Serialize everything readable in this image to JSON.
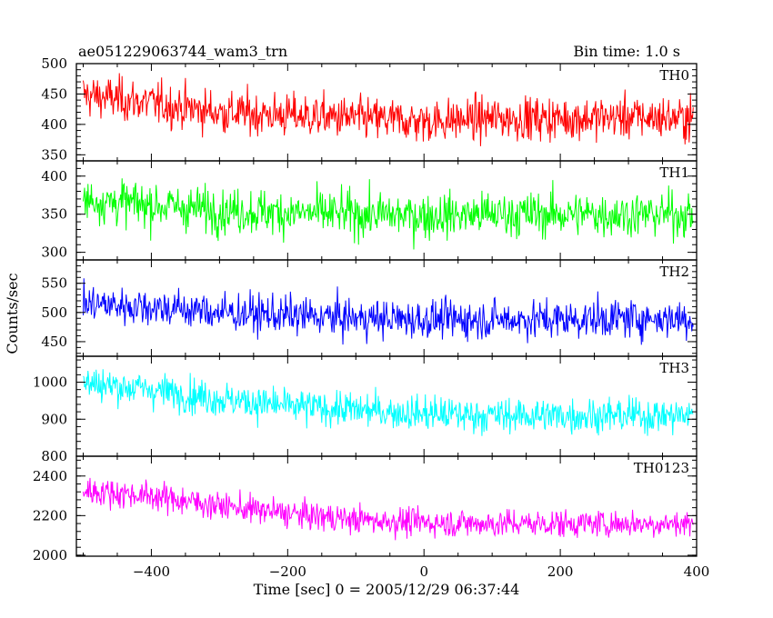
{
  "chart_data": {
    "type": "line",
    "title": "ae051229063744_wam3_trn",
    "bin_time_label": "Bin time: 1.0 s",
    "xlabel": "Time [sec] 0 = 2005/12/29 06:37:44",
    "ylabel": "Counts/sec",
    "x_range": [
      -510,
      400
    ],
    "x_ticks": [
      -400,
      -200,
      0,
      200,
      400
    ],
    "grid": false,
    "panels": [
      {
        "name": "TH0",
        "color": "#ff0000",
        "ylim": [
          340,
          500
        ],
        "yticks": [
          350,
          400,
          450,
          500
        ],
        "trend": [
          [
            -510,
            450
          ],
          [
            -400,
            435
          ],
          [
            -300,
            420
          ],
          [
            -200,
            415
          ],
          [
            -100,
            410
          ],
          [
            0,
            405
          ],
          [
            100,
            410
          ],
          [
            200,
            410
          ],
          [
            300,
            412
          ],
          [
            400,
            410
          ]
        ],
        "noise": 30
      },
      {
        "name": "TH1",
        "color": "#00ff00",
        "ylim": [
          290,
          420
        ],
        "yticks": [
          300,
          350,
          400
        ],
        "trend": [
          [
            -510,
            370
          ],
          [
            -400,
            362
          ],
          [
            -300,
            355
          ],
          [
            -200,
            352
          ],
          [
            -100,
            350
          ],
          [
            0,
            348
          ],
          [
            100,
            350
          ],
          [
            200,
            350
          ],
          [
            300,
            350
          ],
          [
            400,
            350
          ]
        ],
        "noise": 25
      },
      {
        "name": "TH2",
        "color": "#0000ff",
        "ylim": [
          425,
          590
        ],
        "yticks": [
          450,
          500,
          550
        ],
        "trend": [
          [
            -510,
            515
          ],
          [
            -400,
            510
          ],
          [
            -300,
            500
          ],
          [
            -200,
            495
          ],
          [
            -100,
            490
          ],
          [
            0,
            488
          ],
          [
            100,
            488
          ],
          [
            200,
            488
          ],
          [
            300,
            490
          ],
          [
            400,
            490
          ]
        ],
        "noise": 28
      },
      {
        "name": "TH3",
        "color": "#00ffff",
        "ylim": [
          800,
          1070
        ],
        "yticks": [
          800,
          900,
          1000
        ],
        "trend": [
          [
            -510,
            1000
          ],
          [
            -400,
            980
          ],
          [
            -300,
            955
          ],
          [
            -200,
            935
          ],
          [
            -100,
            925
          ],
          [
            0,
            915
          ],
          [
            100,
            910
          ],
          [
            200,
            910
          ],
          [
            300,
            910
          ],
          [
            400,
            910
          ]
        ],
        "noise": 40
      },
      {
        "name": "TH0123",
        "color": "#ff00ff",
        "ylim": [
          1995,
          2500
        ],
        "yticks": [
          2000,
          2200,
          2400
        ],
        "trend": [
          [
            -510,
            2330
          ],
          [
            -400,
            2300
          ],
          [
            -300,
            2250
          ],
          [
            -200,
            2210
          ],
          [
            -100,
            2180
          ],
          [
            0,
            2165
          ],
          [
            100,
            2160
          ],
          [
            200,
            2160
          ],
          [
            300,
            2160
          ],
          [
            400,
            2160
          ]
        ],
        "noise": 60
      }
    ]
  }
}
